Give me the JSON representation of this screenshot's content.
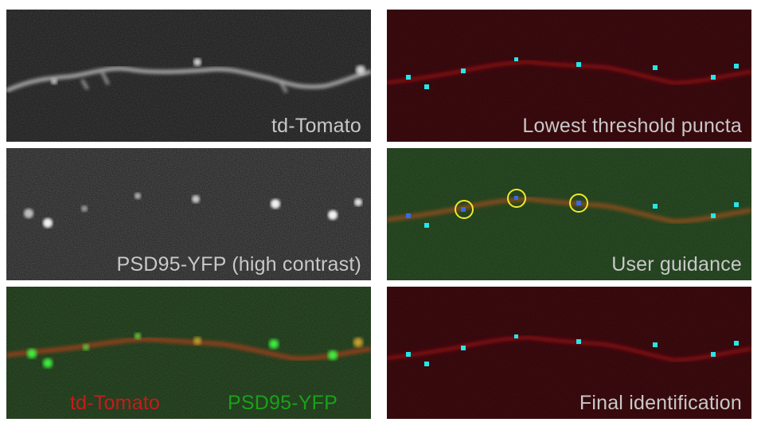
{
  "panels": [
    {
      "id": "a",
      "label": "td-Tomato",
      "label_color": "#c8c8c8",
      "background": "#141414",
      "dendrite_color": "#bdbdbd",
      "puncta_color": null
    },
    {
      "id": "b",
      "label": "PSD95-YFP (high contrast)",
      "label_color": "#c8c8c8",
      "background": "#141414",
      "dendrite_color": null,
      "puncta_color": "#f2f2f2"
    },
    {
      "id": "c",
      "labels": [
        {
          "text": "td-Tomato",
          "color": "#c81a1a"
        },
        {
          "text": "PSD95-YFP",
          "color": "#19a119"
        }
      ],
      "background": "#161a10",
      "dendrite_color": "#b8401a",
      "puncta_color": "#3cf03c"
    },
    {
      "id": "d",
      "label": "Lowest threshold puncta",
      "label_color": "#c8c8c8",
      "background": "#1c0304",
      "dendrite_color": "#8a0e14",
      "puncta_color": "#26e6e6"
    },
    {
      "id": "e",
      "label": "User guidance",
      "label_color": "#c8c8c8",
      "background": "#182812",
      "dendrite_color": "#a0501c",
      "puncta_color": "#26e6e6",
      "circle_color": "#f0ea2a"
    },
    {
      "id": "f",
      "label": "Final identification",
      "label_color": "#c8c8c8",
      "background": "#1c0304",
      "dendrite_color": "#8a0e14",
      "puncta_color": "#26e6e6"
    }
  ]
}
